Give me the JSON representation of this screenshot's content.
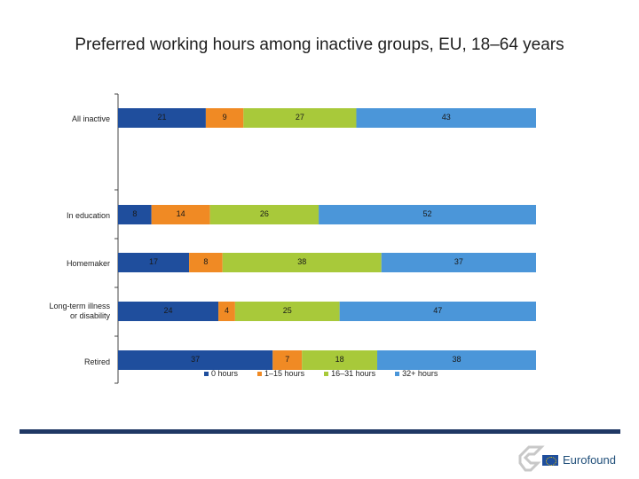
{
  "title": "Preferred working hours among inactive groups, EU, 18–64 years",
  "chart_data": {
    "type": "bar",
    "orientation": "horizontal",
    "stacked": true,
    "percent": true,
    "categories": [
      "All inactive",
      "In education",
      "Homemaker",
      "Long-term illness\nor disability",
      "Retired"
    ],
    "series": [
      {
        "name": "0 hours",
        "color": "#1f4e9d",
        "values": [
          21,
          8,
          17,
          24,
          37
        ]
      },
      {
        "name": "1–15 hours",
        "color": "#f08a24",
        "values": [
          9,
          14,
          8,
          4,
          7
        ]
      },
      {
        "name": "16–31 hours",
        "color": "#a8c93a",
        "values": [
          27,
          26,
          38,
          25,
          18
        ]
      },
      {
        "name": "32+ hours",
        "color": "#4b96d9",
        "values": [
          43,
          52,
          37,
          47,
          38
        ]
      }
    ],
    "xlim": [
      0,
      100
    ],
    "grid": false,
    "legend": "bottom"
  },
  "legend_labels": [
    "0 hours",
    "1–15 hours",
    "16–31 hours",
    "32+ hours"
  ],
  "brand": {
    "name": "Eurofound"
  }
}
